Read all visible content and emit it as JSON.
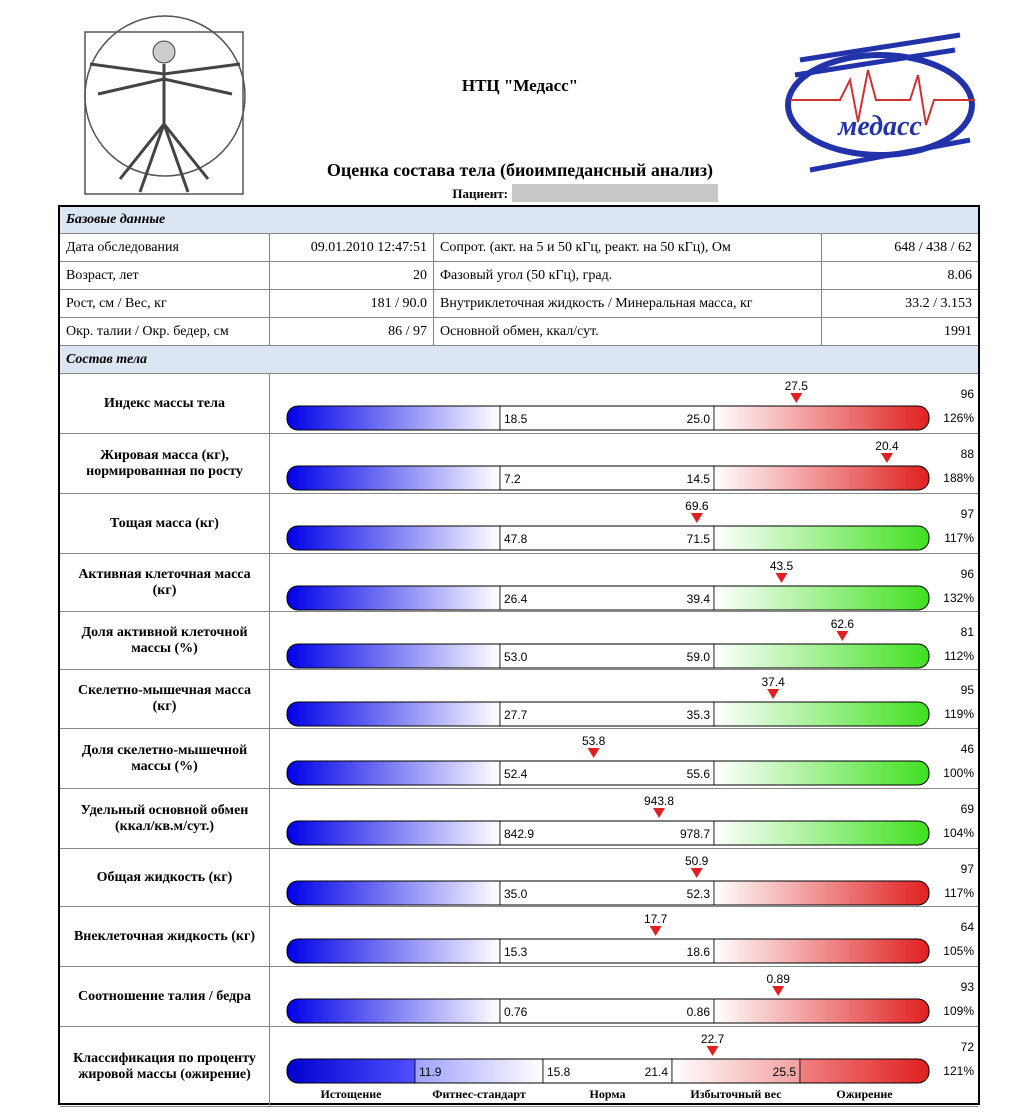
{
  "header": {
    "org": "НТЦ \"Медасс\"",
    "title": "Оценка состава тела (биоимпедансный анализ)",
    "patient_label": "Пациент:"
  },
  "basic": {
    "title": "Базовые данные",
    "rows": [
      [
        "Дата обследования",
        "09.01.2010 12:47:51",
        "Сопрот. (акт. на 5 и 50 кГц, реакт. на 50 кГц), Ом",
        "648 / 438 / 62"
      ],
      [
        "Возраст, лет",
        "20",
        "Фазовый угол (50 кГц), град.",
        "8.06"
      ],
      [
        "Рост, см / Вес, кг",
        "181 / 90.0",
        "Внутриклеточная жидкость / Минеральная масса, кг",
        "33.2 / 3.153"
      ],
      [
        "Окр. талии / Окр. бедер, см",
        "86 / 97",
        "Основной обмен, ккал/сут.",
        "1991"
      ]
    ]
  },
  "composition": {
    "title": "Состав тела",
    "rows": [
      {
        "label": "Индекс массы тела",
        "low": "18.5",
        "high": "25.0",
        "value": "27.5",
        "percentile": "96",
        "percent": "126%",
        "color": "red"
      },
      {
        "label": "Жировая масса (кг), нормированная по росту",
        "low": "7.2",
        "high": "14.5",
        "value": "20.4",
        "percentile": "88",
        "percent": "188%",
        "color": "red"
      },
      {
        "label": "Тощая масса (кг)",
        "low": "47.8",
        "high": "71.5",
        "value": "69.6",
        "percentile": "97",
        "percent": "117%",
        "color": "green"
      },
      {
        "label": "Активная клеточная масса (кг)",
        "low": "26.4",
        "high": "39.4",
        "value": "43.5",
        "percentile": "96",
        "percent": "132%",
        "color": "green"
      },
      {
        "label": "Доля активной клеточной массы (%)",
        "low": "53.0",
        "high": "59.0",
        "value": "62.6",
        "percentile": "81",
        "percent": "112%",
        "color": "green"
      },
      {
        "label": "Скелетно-мышечная масса (кг)",
        "low": "27.7",
        "high": "35.3",
        "value": "37.4",
        "percentile": "95",
        "percent": "119%",
        "color": "green"
      },
      {
        "label": "Доля скелетно-мышечной массы (%)",
        "low": "52.4",
        "high": "55.6",
        "value": "53.8",
        "percentile": "46",
        "percent": "100%",
        "color": "green"
      },
      {
        "label": "Удельный основной обмен (ккал/кв.м/сут.)",
        "low": "842.9",
        "high": "978.7",
        "value": "943.8",
        "percentile": "69",
        "percent": "104%",
        "color": "green"
      },
      {
        "label": "Общая жидкость (кг)",
        "low": "35.0",
        "high": "52.3",
        "value": "50.9",
        "percentile": "97",
        "percent": "117%",
        "color": "red"
      },
      {
        "label": "Внеклеточная жидкость (кг)",
        "low": "15.3",
        "high": "18.6",
        "value": "17.7",
        "percentile": "64",
        "percent": "105%",
        "color": "red"
      },
      {
        "label": "Соотношение талия / бедра",
        "low": "0.76",
        "high": "0.86",
        "value": "0.89",
        "percentile": "93",
        "percent": "109%",
        "color": "red"
      }
    ],
    "classification": {
      "label": "Классификация по проценту жировой массы (ожирение)",
      "bounds": [
        "11.9",
        "15.8",
        "21.4",
        "25.5"
      ],
      "value": "22.7",
      "percentile": "72",
      "percent": "121%",
      "categories": [
        "Истощение",
        "Фитнес-стандарт",
        "Норма",
        "Избыточный вес",
        "Ожирение"
      ]
    }
  }
}
